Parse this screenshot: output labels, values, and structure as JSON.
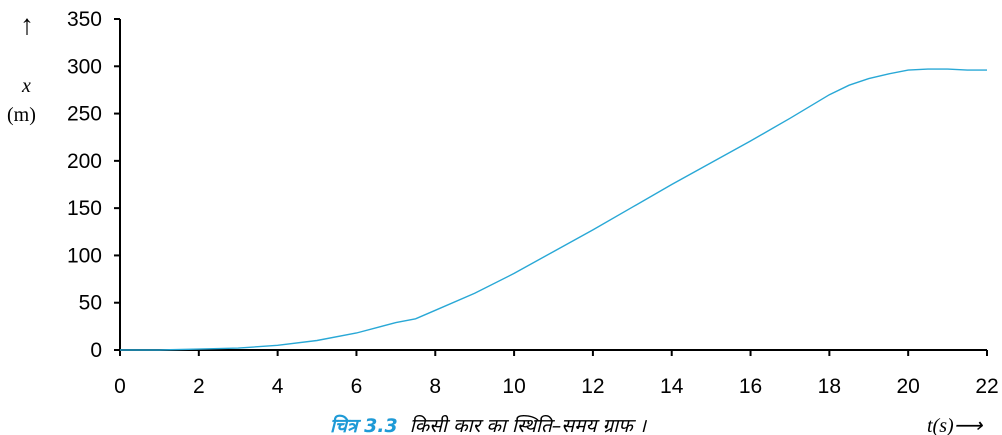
{
  "chart_data": {
    "type": "line",
    "title": "",
    "ylabel_symbol": "x",
    "ylabel_unit": "(m)",
    "y_arrow": "↑",
    "xlabel": "t(s)⟶",
    "xlim": [
      0,
      22
    ],
    "ylim": [
      0,
      350
    ],
    "xticks": [
      "0",
      "2",
      "4",
      "6",
      "8",
      "10",
      "12",
      "14",
      "16",
      "18",
      "20",
      "22"
    ],
    "yticks": [
      "0",
      "50",
      "100",
      "150",
      "200",
      "250",
      "300",
      "350"
    ],
    "grid": false,
    "line_color": "#29a8d6",
    "series": [
      {
        "x": [
          0,
          1,
          2,
          3,
          4,
          5,
          6,
          7,
          7.5,
          8,
          9,
          10,
          11,
          12,
          13,
          14,
          15,
          16,
          17,
          18,
          18.5,
          19,
          19.5,
          20,
          20.5,
          21,
          21.5,
          22
        ],
        "values": [
          0,
          0,
          1,
          2,
          5,
          10,
          18,
          29,
          33,
          42,
          60,
          81,
          104,
          127,
          151,
          175,
          198,
          221,
          245,
          270,
          280,
          287,
          292,
          296,
          297,
          297,
          296,
          296
        ]
      }
    ]
  },
  "caption": {
    "number": "चित्र 3.3",
    "text": "किसी कार का स्थिति–समय ग्राफ ।"
  }
}
